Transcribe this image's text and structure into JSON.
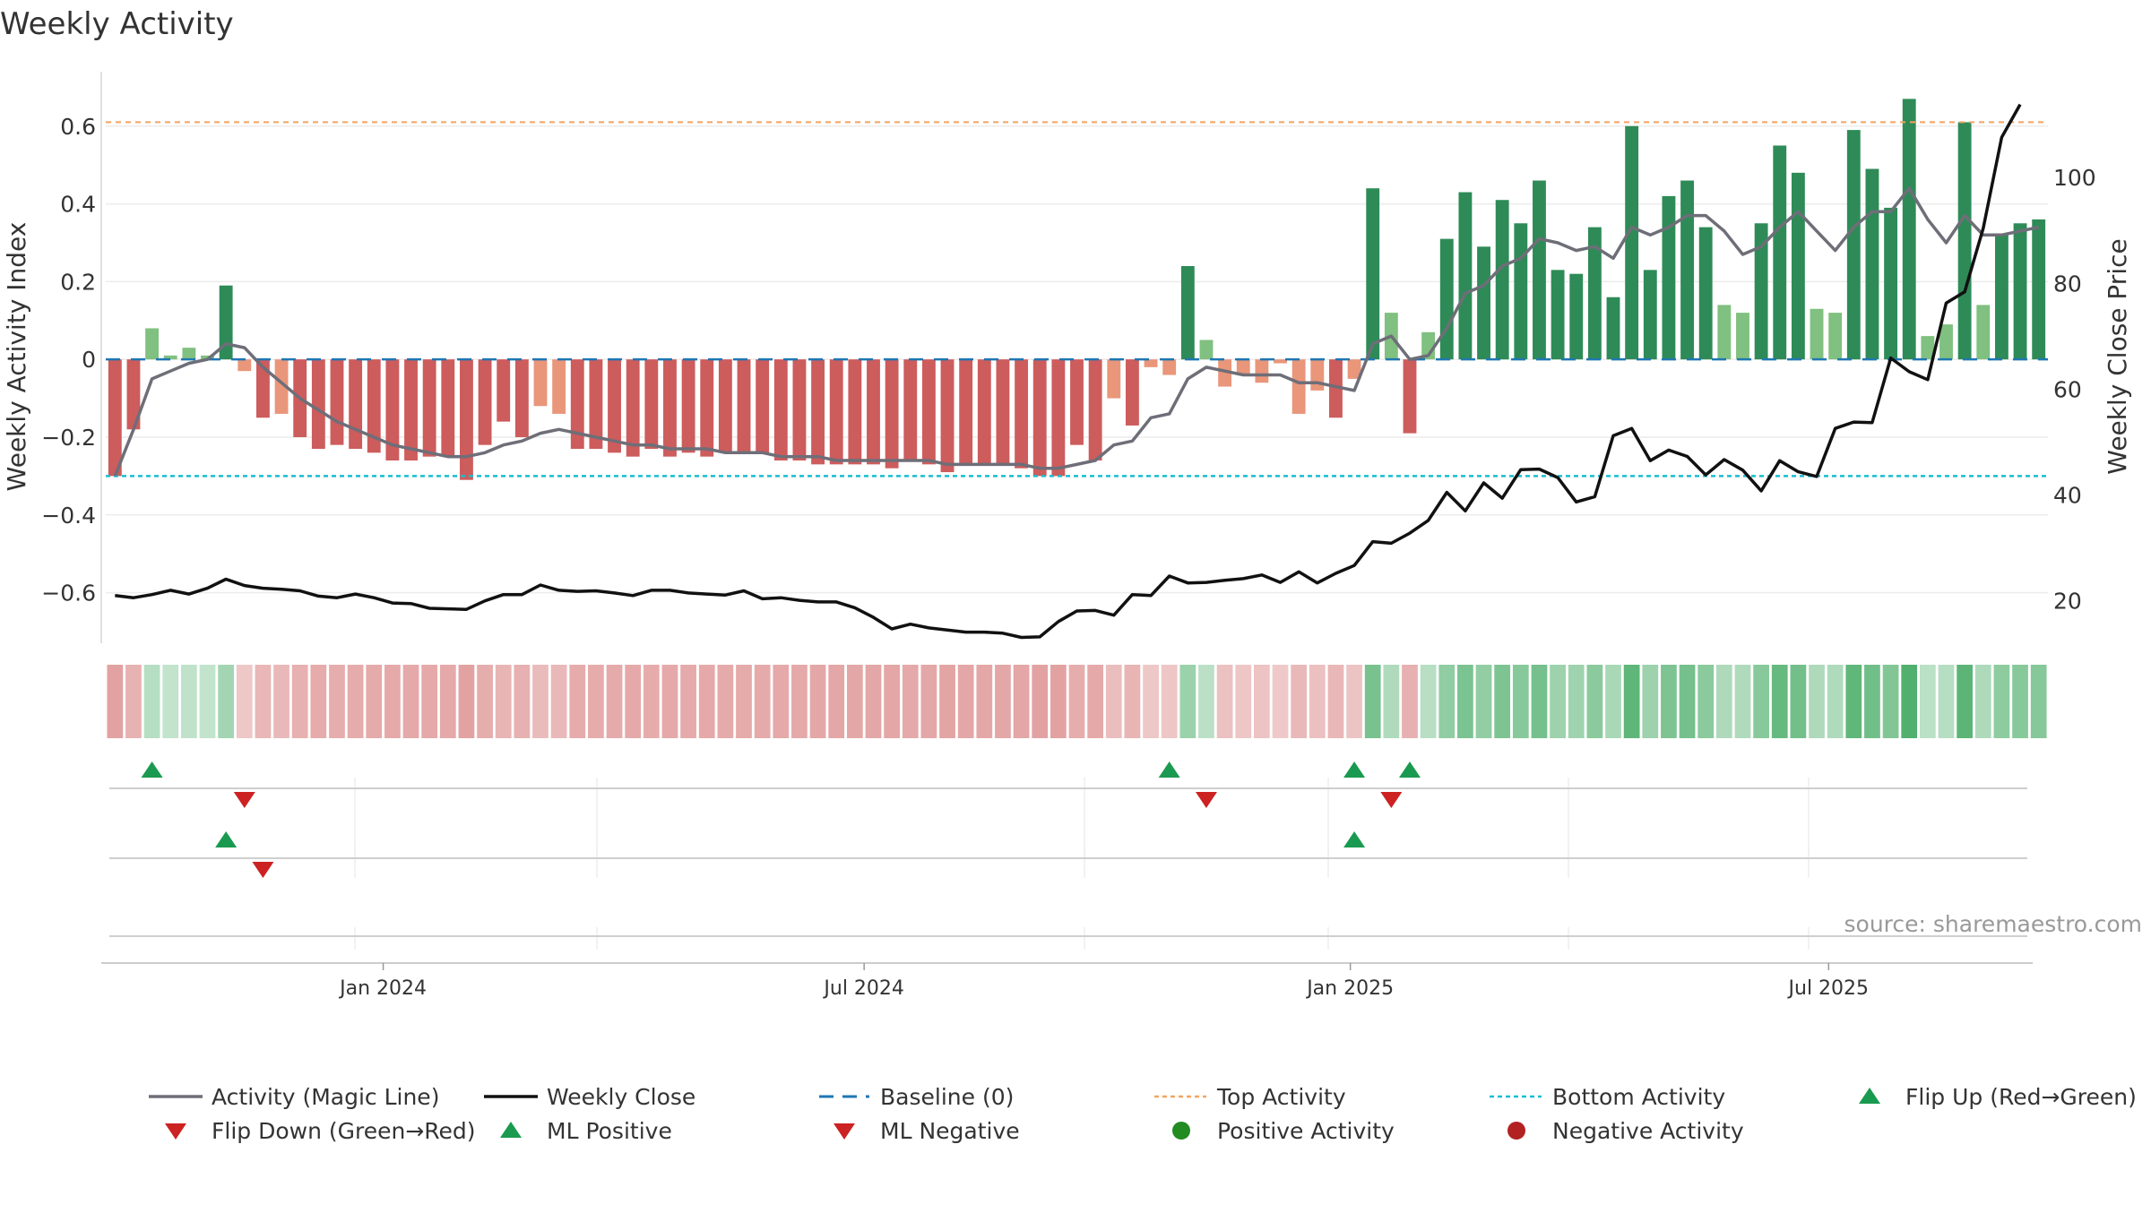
{
  "chart_data": {
    "type": "bar",
    "title": "Weekly Activity",
    "ylabel": "Weekly Activity Index",
    "ylabel_right": "Weekly Close Price",
    "ylim": [
      -0.73,
      0.74
    ],
    "ylim_right": [
      12,
      120
    ],
    "y_ticks": [
      0.6,
      0.4,
      0.2,
      0,
      -0.2,
      -0.4,
      -0.6
    ],
    "y_tick_labels": [
      "0.6",
      "0.4",
      "0.2",
      "0",
      "−0.2",
      "−0.4",
      "−0.6"
    ],
    "y_right_ticks": [
      100,
      80,
      60,
      40,
      20
    ],
    "y_right_tick_labels": [
      "100",
      "80",
      "60",
      "40",
      "20"
    ],
    "x_start": "2023-09-18",
    "x_ticks": [
      "2024-01-01",
      "2024-07-01",
      "2025-01-01",
      "2025-07-01"
    ],
    "x_tick_labels": [
      "Jan 2024",
      "Jul 2024",
      "Jan 2025",
      "Jul 2025"
    ],
    "grid": true,
    "legend_position": "bottom",
    "top_activity": 0.61,
    "bottom_activity": -0.3,
    "baseline": 0,
    "colors": {
      "dark_green": "#2e8b57",
      "light_green": "#80c080",
      "dark_red": "#cd5c5c",
      "light_red": "#e9967a",
      "magic_line": "#6e6e78",
      "close_line": "#111111",
      "baseline": "#1f77b4",
      "top_activity": "#f4a460",
      "bottom_activity": "#17becf",
      "marker_green": "#1a9a50",
      "marker_red": "#cc2222",
      "positive_dot": "#228b22",
      "negative_dot": "#b22222"
    },
    "series": [
      {
        "name": "Weekly Activity",
        "values": [
          -0.3,
          -0.18,
          0.08,
          0.01,
          0.03,
          0.01,
          0.19,
          -0.03,
          -0.15,
          -0.14,
          -0.2,
          -0.23,
          -0.22,
          -0.23,
          -0.24,
          -0.26,
          -0.26,
          -0.25,
          -0.25,
          -0.31,
          -0.22,
          -0.16,
          -0.2,
          -0.12,
          -0.14,
          -0.23,
          -0.23,
          -0.24,
          -0.25,
          -0.23,
          -0.25,
          -0.24,
          -0.25,
          -0.24,
          -0.24,
          -0.24,
          -0.26,
          -0.26,
          -0.27,
          -0.27,
          -0.27,
          -0.27,
          -0.28,
          -0.26,
          -0.27,
          -0.29,
          -0.27,
          -0.27,
          -0.27,
          -0.28,
          -0.3,
          -0.3,
          -0.22,
          -0.26,
          -0.1,
          -0.17,
          -0.02,
          -0.04,
          0.24,
          0.05,
          -0.07,
          -0.04,
          -0.06,
          -0.01,
          -0.14,
          -0.08,
          -0.15,
          -0.05,
          0.44,
          0.12,
          -0.19,
          0.07,
          0.31,
          0.43,
          0.29,
          0.41,
          0.35,
          0.46,
          0.23,
          0.22,
          0.34,
          0.16,
          0.6,
          0.23,
          0.42,
          0.46,
          0.34,
          0.14,
          0.12,
          0.35,
          0.55,
          0.48,
          0.13,
          0.12,
          0.59,
          0.49,
          0.39,
          0.67,
          0.06,
          0.09,
          0.61,
          0.14,
          0.32,
          0.35,
          0.36
        ]
      },
      {
        "name": "Activity (Magic Line)",
        "values": [
          -0.3,
          -0.18,
          -0.05,
          -0.03,
          -0.01,
          0.0,
          0.04,
          0.03,
          -0.02,
          -0.06,
          -0.1,
          -0.13,
          -0.16,
          -0.18,
          -0.2,
          -0.22,
          -0.23,
          -0.24,
          -0.25,
          -0.25,
          -0.24,
          -0.22,
          -0.21,
          -0.19,
          -0.18,
          -0.19,
          -0.2,
          -0.21,
          -0.22,
          -0.22,
          -0.23,
          -0.23,
          -0.23,
          -0.24,
          -0.24,
          -0.24,
          -0.25,
          -0.25,
          -0.25,
          -0.26,
          -0.26,
          -0.26,
          -0.26,
          -0.26,
          -0.26,
          -0.27,
          -0.27,
          -0.27,
          -0.27,
          -0.27,
          -0.28,
          -0.28,
          -0.27,
          -0.26,
          -0.22,
          -0.21,
          -0.15,
          -0.14,
          -0.05,
          -0.02,
          -0.03,
          -0.04,
          -0.04,
          -0.04,
          -0.06,
          -0.06,
          -0.07,
          -0.08,
          0.04,
          0.06,
          0.0,
          0.01,
          0.08,
          0.17,
          0.19,
          0.24,
          0.26,
          0.31,
          0.3,
          0.28,
          0.29,
          0.26,
          0.34,
          0.32,
          0.34,
          0.37,
          0.37,
          0.33,
          0.27,
          0.29,
          0.34,
          0.38,
          0.33,
          0.28,
          0.34,
          0.38,
          0.38,
          0.44,
          0.36,
          0.3,
          0.37,
          0.32,
          0.32,
          0.33,
          0.34
        ]
      },
      {
        "name": "Weekly Close",
        "axis": "right",
        "values": [
          21.0,
          20.6,
          21.2,
          22.0,
          21.3,
          22.4,
          24.1,
          22.9,
          22.4,
          22.2,
          21.9,
          20.9,
          20.6,
          21.3,
          20.6,
          19.6,
          19.5,
          18.6,
          18.5,
          18.4,
          20.0,
          21.2,
          21.2,
          23.0,
          22.0,
          21.8,
          21.9,
          21.5,
          21.0,
          22.0,
          22.0,
          21.5,
          21.3,
          21.1,
          21.9,
          20.4,
          20.6,
          20.1,
          19.8,
          19.8,
          18.7,
          16.9,
          14.7,
          15.6,
          14.9,
          14.5,
          14.1,
          14.1,
          13.9,
          13.1,
          13.2,
          16.1,
          18.1,
          18.2,
          17.3,
          21.2,
          21.0,
          24.7,
          23.4,
          23.5,
          23.9,
          24.2,
          24.9,
          23.5,
          25.5,
          23.4,
          25.2,
          26.7,
          31.2,
          30.9,
          32.8,
          35.2,
          40.5,
          37.0,
          42.3,
          39.4,
          44.8,
          44.9,
          43.3,
          38.7,
          39.7,
          51.2,
          52.6,
          46.5,
          48.5,
          47.3,
          43.8,
          46.7,
          44.7,
          40.8,
          46.5,
          44.4,
          43.5,
          52.6,
          53.8,
          53.7,
          65.9,
          63.3,
          61.8,
          76.3,
          78.4,
          90.4,
          107.6,
          113.8
        ]
      }
    ],
    "ml_positive_weeks": [
      6,
      67
    ],
    "ml_negative_weeks": [
      8
    ],
    "flip_up_weeks": [
      2,
      57,
      67,
      70
    ],
    "flip_down_weeks": [
      7,
      59,
      69
    ],
    "legend": [
      {
        "label": "Activity (Magic Line)",
        "kind": "line",
        "color": "#6e6e78"
      },
      {
        "label": "Weekly Close",
        "kind": "line",
        "color": "#111111"
      },
      {
        "label": "Baseline (0)",
        "kind": "dashed",
        "color": "#1f77b4"
      },
      {
        "label": "Top Activity",
        "kind": "dotted",
        "color": "#f4a460"
      },
      {
        "label": "Bottom Activity",
        "kind": "dotted",
        "color": "#17becf"
      },
      {
        "label": "Flip Up (Red→Green)",
        "kind": "triangle-up",
        "color": "#1a9a50"
      },
      {
        "label": "Flip Down (Green→Red)",
        "kind": "triangle-down",
        "color": "#cc2222"
      },
      {
        "label": "ML Positive",
        "kind": "triangle-up",
        "color": "#1a9a50"
      },
      {
        "label": "ML Negative",
        "kind": "triangle-down",
        "color": "#cc2222"
      },
      {
        "label": "Positive Activity",
        "kind": "dot",
        "color": "#228b22"
      },
      {
        "label": "Negative Activity",
        "kind": "dot",
        "color": "#b22222"
      }
    ],
    "source": "source: sharemaestro.com"
  }
}
